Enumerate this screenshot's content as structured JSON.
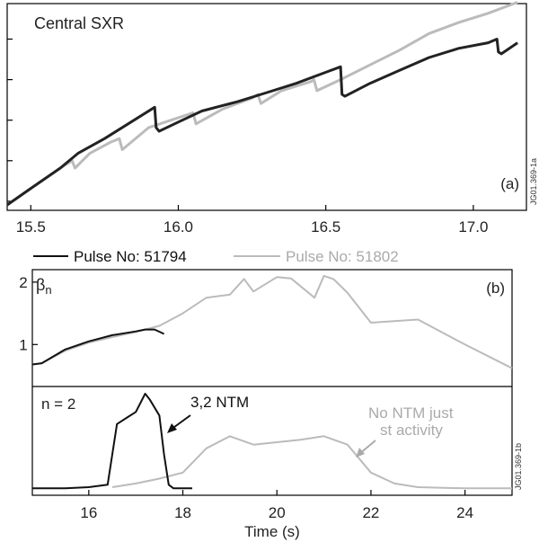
{
  "chart_data": [
    {
      "type": "line",
      "panel_label": "(a)",
      "title": "Central SXR",
      "xlim": [
        15.42,
        17.18
      ],
      "x_ticks": [
        "15.5",
        "16.0",
        "16.5",
        "17.0"
      ],
      "y_ticks_labeled": false,
      "series": [
        {
          "color": "#222222",
          "x": [
            15.42,
            15.5,
            15.6,
            15.66,
            15.75,
            15.83,
            15.92,
            15.925,
            15.935,
            16.0,
            16.08,
            16.2,
            16.3,
            16.4,
            16.5,
            16.55,
            16.555,
            16.565,
            16.65,
            16.75,
            16.85,
            16.95,
            17.05,
            17.08,
            17.085,
            17.095,
            17.15
          ],
          "y": [
            0.0,
            0.09,
            0.2,
            0.28,
            0.36,
            0.44,
            0.53,
            0.42,
            0.4,
            0.45,
            0.51,
            0.56,
            0.61,
            0.66,
            0.72,
            0.75,
            0.6,
            0.59,
            0.66,
            0.73,
            0.8,
            0.85,
            0.88,
            0.9,
            0.83,
            0.82,
            0.88
          ]
        },
        {
          "color": "#bbbbbb",
          "x": [
            15.42,
            15.5,
            15.6,
            15.64,
            15.65,
            15.7,
            15.77,
            15.8,
            15.81,
            15.9,
            16.05,
            16.06,
            16.15,
            16.25,
            16.27,
            16.28,
            16.35,
            16.45,
            16.46,
            16.47,
            16.55,
            16.65,
            16.75,
            16.85,
            16.95,
            17.05,
            17.15
          ],
          "y": [
            0.0,
            0.09,
            0.2,
            0.24,
            0.2,
            0.28,
            0.34,
            0.36,
            0.3,
            0.42,
            0.5,
            0.44,
            0.52,
            0.58,
            0.6,
            0.55,
            0.62,
            0.67,
            0.68,
            0.62,
            0.68,
            0.76,
            0.84,
            0.93,
            0.99,
            1.04,
            1.1
          ]
        }
      ]
    },
    {
      "type": "line",
      "panel_label": "(b)",
      "xlim": [
        14.8,
        25.0
      ],
      "ylim": [
        0.5,
        2.2
      ],
      "y_tick_labels": [
        "1",
        "2"
      ],
      "y_label": "β",
      "y_label_subscript": "n",
      "legend": [
        {
          "name": "Pulse No: 51794",
          "color": "#111111"
        },
        {
          "name": "Pulse No: 51802",
          "color": "#bbbbbb"
        }
      ],
      "series": [
        {
          "name": "Pulse No: 51794",
          "color": "#111111",
          "x": [
            14.8,
            15.0,
            15.5,
            16.0,
            16.5,
            17.0,
            17.2,
            17.4,
            17.6
          ],
          "y": [
            0.68,
            0.7,
            0.92,
            1.05,
            1.15,
            1.21,
            1.24,
            1.24,
            1.17
          ]
        },
        {
          "name": "Pulse No: 51802",
          "color": "#bbbbbb",
          "x": [
            14.8,
            15.0,
            15.5,
            16.0,
            16.5,
            17.0,
            17.5,
            18.0,
            18.5,
            19.0,
            19.3,
            19.5,
            20.0,
            20.3,
            20.8,
            21.0,
            21.2,
            21.5,
            22.0,
            23.0,
            24.0,
            25.0
          ],
          "y": [
            0.68,
            0.7,
            0.9,
            1.03,
            1.12,
            1.2,
            1.3,
            1.5,
            1.75,
            1.8,
            2.05,
            1.85,
            2.08,
            2.06,
            1.75,
            2.1,
            2.05,
            1.83,
            1.35,
            1.4,
            1.0,
            0.62
          ]
        }
      ]
    },
    {
      "type": "line",
      "xlim": [
        14.8,
        25.0
      ],
      "x_ticks": [
        "16",
        "18",
        "20",
        "22",
        "24"
      ],
      "xlabel": "Time (s)",
      "panel_text": "n = 2",
      "annotations": [
        {
          "text": "3,2 NTM",
          "color": "#111111"
        },
        {
          "text": "No NTM just",
          "color": "#aaaaaa"
        },
        {
          "text": "st  activity",
          "color": "#aaaaaa"
        }
      ],
      "series": [
        {
          "name": "Pulse No: 51794",
          "color": "#111111",
          "x": [
            14.8,
            15.5,
            16.0,
            16.4,
            16.6,
            16.8,
            17.0,
            17.2,
            17.3,
            17.5,
            17.6,
            17.7,
            17.8,
            18.2
          ],
          "y": [
            0.02,
            0.02,
            0.03,
            0.05,
            0.55,
            0.6,
            0.65,
            0.8,
            0.75,
            0.62,
            0.3,
            0.05,
            0.02,
            0.02
          ]
        },
        {
          "name": "Pulse No: 51802",
          "color": "#bbbbbb",
          "x": [
            16.5,
            17.0,
            17.5,
            18.0,
            18.5,
            19.0,
            19.5,
            20.0,
            20.5,
            21.0,
            21.5,
            22.0,
            22.5,
            23.0,
            24.0,
            25.0
          ],
          "y": [
            0.03,
            0.06,
            0.1,
            0.15,
            0.35,
            0.45,
            0.38,
            0.4,
            0.42,
            0.45,
            0.38,
            0.15,
            0.06,
            0.03,
            0.02,
            0.02
          ]
        }
      ]
    }
  ],
  "figure_ids": {
    "a": "JG01.369-1a",
    "b": "JG01.369-1b"
  }
}
